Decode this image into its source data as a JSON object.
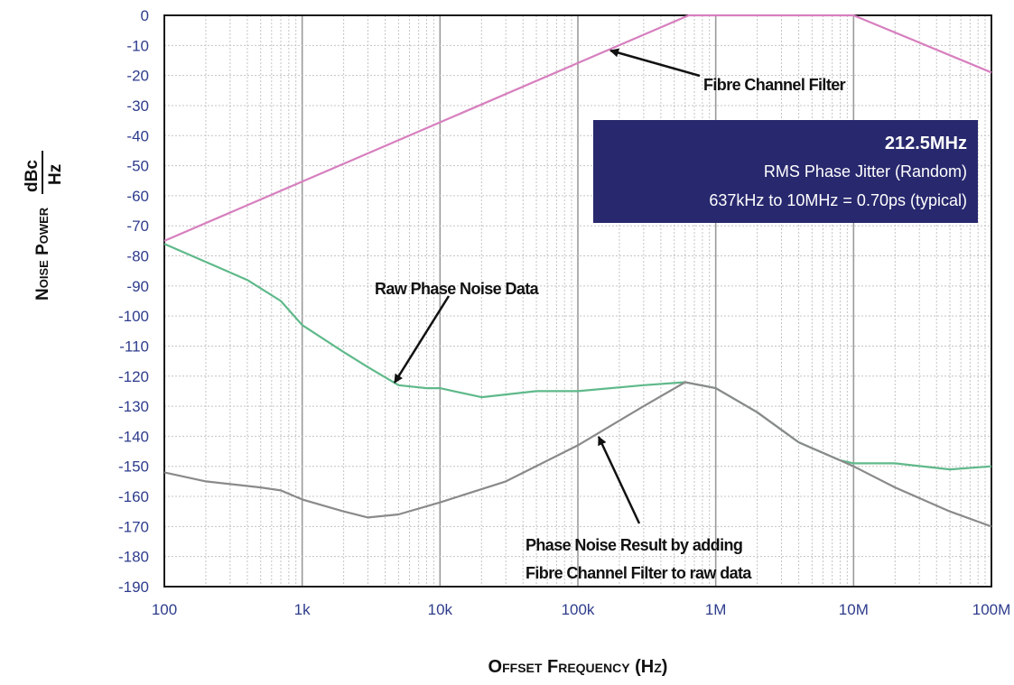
{
  "chart_data": {
    "type": "line",
    "xscale": "log",
    "xlim": [
      100,
      100000000
    ],
    "ylim": [
      -190,
      0
    ],
    "grid": true,
    "xlabel": "Offset Frequency (Hz)",
    "ylabel": "Noise Power",
    "ylabel_units_num": "dBc",
    "ylabel_units_den": "Hz",
    "x_ticks": [
      {
        "value": 100,
        "label": "100"
      },
      {
        "value": 1000,
        "label": "1k"
      },
      {
        "value": 10000,
        "label": "10k"
      },
      {
        "value": 100000,
        "label": "100k"
      },
      {
        "value": 1000000,
        "label": "1M"
      },
      {
        "value": 10000000,
        "label": "10M"
      },
      {
        "value": 100000000,
        "label": "100M"
      }
    ],
    "y_ticks": [
      0,
      -10,
      -20,
      -30,
      -40,
      -50,
      -60,
      -70,
      -80,
      -90,
      -100,
      -110,
      -120,
      -130,
      -140,
      -150,
      -160,
      -170,
      -180,
      -190
    ],
    "series": [
      {
        "name": "Fibre Channel Filter",
        "color": "#d77fbe",
        "points": [
          [
            100,
            -75
          ],
          [
            637000,
            0
          ],
          [
            10000000,
            0
          ],
          [
            100000000,
            -19
          ]
        ]
      },
      {
        "name": "Raw Phase Noise Data",
        "color": "#5fb98a",
        "points": [
          [
            100,
            -76
          ],
          [
            200,
            -82
          ],
          [
            400,
            -88
          ],
          [
            700,
            -95
          ],
          [
            1000,
            -103
          ],
          [
            2000,
            -112
          ],
          [
            3000,
            -117
          ],
          [
            5000,
            -123
          ],
          [
            8000,
            -124
          ],
          [
            10000,
            -124
          ],
          [
            20000,
            -127
          ],
          [
            50000,
            -125
          ],
          [
            100000,
            -125
          ],
          [
            300000,
            -123
          ],
          [
            600000,
            -122
          ],
          [
            1000000,
            -124
          ],
          [
            2000000,
            -132
          ],
          [
            4000000,
            -142
          ],
          [
            8000000,
            -148
          ],
          [
            10000000,
            -149
          ],
          [
            20000000,
            -149
          ],
          [
            50000000,
            -151
          ],
          [
            100000000,
            -150
          ]
        ]
      },
      {
        "name": "Phase Noise Result by adding Fibre Channel Filter to raw data",
        "color": "#8a8a8a",
        "points": [
          [
            100,
            -152
          ],
          [
            200,
            -155
          ],
          [
            500,
            -157
          ],
          [
            700,
            -158
          ],
          [
            1000,
            -161
          ],
          [
            2000,
            -165
          ],
          [
            3000,
            -167
          ],
          [
            5000,
            -166
          ],
          [
            10000,
            -162
          ],
          [
            30000,
            -155
          ],
          [
            100000,
            -143
          ],
          [
            300000,
            -130
          ],
          [
            600000,
            -122
          ],
          [
            1000000,
            -124
          ],
          [
            2000000,
            -132
          ],
          [
            4000000,
            -142
          ],
          [
            8000000,
            -148
          ],
          [
            10000000,
            -150
          ],
          [
            20000000,
            -157
          ],
          [
            50000000,
            -165
          ],
          [
            100000000,
            -170
          ]
        ]
      }
    ],
    "annotations": {
      "filter_label": "Fibre Channel Filter",
      "raw_label": "Raw Phase Noise Data",
      "result_label_line1": "Phase Noise Result by adding",
      "result_label_line2": "Fibre Channel Filter to raw data"
    },
    "info_box": {
      "title": "212.5MHz",
      "line1": "RMS Phase Jitter (Random)",
      "line2": "637kHz to 10MHz = 0.70ps (typical)",
      "background": "#28286e"
    }
  }
}
